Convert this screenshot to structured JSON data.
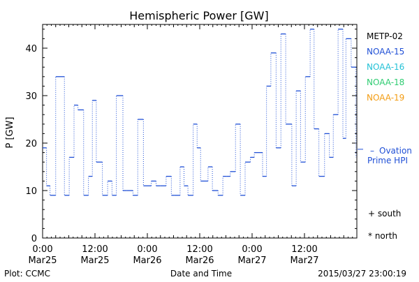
{
  "chart_data": {
    "type": "line",
    "title": "Hemispheric Power [GW]",
    "ylabel": "P [GW]",
    "xlabel": "Date and Time",
    "ylim": [
      0,
      45
    ],
    "yticks": [
      0,
      10,
      20,
      30,
      40
    ],
    "xlim_hours": [
      0,
      72
    ],
    "xticks": [
      {
        "hour": 0,
        "time": "0:00",
        "date": "Mar25"
      },
      {
        "hour": 12,
        "time": "12:00",
        "date": "Mar25"
      },
      {
        "hour": 24,
        "time": "0:00",
        "date": "Mar26"
      },
      {
        "hour": 36,
        "time": "12:00",
        "date": "Mar26"
      },
      {
        "hour": 48,
        "time": "0:00",
        "date": "Mar27"
      },
      {
        "hour": 60,
        "time": "12:00",
        "date": "Mar27"
      }
    ],
    "grid": false,
    "legend": {
      "placement": "right",
      "entries": [
        {
          "label": "METP-02",
          "color": "#000000"
        },
        {
          "label": "NOAA-15",
          "color": "#1f4fd6"
        },
        {
          "label": "NOAA-16",
          "color": "#22c1d6"
        },
        {
          "label": "NOAA-18",
          "color": "#2ecc71"
        },
        {
          "label": "NOAA-19",
          "color": "#f39c12"
        }
      ]
    },
    "ovation": {
      "label_line1": "Ovation",
      "label_line2": "Prime HPI",
      "value": 18.7,
      "color": "#1f4fd6"
    },
    "symbols": {
      "south": "+ south",
      "north": "* north"
    },
    "series": [
      {
        "name": "NOAA-15",
        "color": "#1f4fd6",
        "style": "step-dotted",
        "x": [
          0.0,
          0.9,
          1.7,
          3.0,
          5.0,
          6.1,
          7.2,
          8.1,
          9.4,
          10.5,
          11.4,
          12.3,
          13.7,
          14.9,
          15.9,
          16.9,
          18.4,
          19.3,
          20.7,
          21.8,
          23.1,
          24.9,
          26.0,
          27.0,
          28.3,
          29.5,
          30.1,
          31.5,
          32.4,
          33.3,
          34.5,
          35.4,
          36.2,
          37.9,
          38.9,
          40.2,
          41.3,
          42.2,
          43.0,
          44.2,
          45.3,
          46.4,
          47.6,
          48.5,
          50.4,
          51.3,
          52.3,
          53.5,
          54.6,
          55.7,
          57.1,
          58.1,
          59.1,
          60.2,
          61.3,
          62.2,
          63.3,
          64.6,
          65.7,
          66.6,
          67.7,
          68.8,
          69.5,
          70.7,
          71.8
        ],
        "y": [
          19,
          11,
          9,
          34,
          9,
          17,
          28,
          27,
          9,
          13,
          29,
          16,
          9,
          12,
          9,
          30,
          10,
          10,
          9,
          25,
          11,
          12,
          11,
          11,
          13,
          9,
          9,
          15,
          11,
          9,
          24,
          19,
          12,
          15,
          10,
          9,
          13,
          13,
          14,
          24,
          9,
          16,
          17,
          18,
          13,
          32,
          39,
          19,
          43,
          24,
          11,
          31,
          16,
          34,
          44,
          23,
          13,
          22,
          17,
          26,
          44,
          21,
          42,
          36,
          17
        ]
      }
    ]
  },
  "footer": {
    "left": "Plot: CCMC",
    "center": "Date and Time",
    "right": "2015/03/27 23:00:19"
  }
}
